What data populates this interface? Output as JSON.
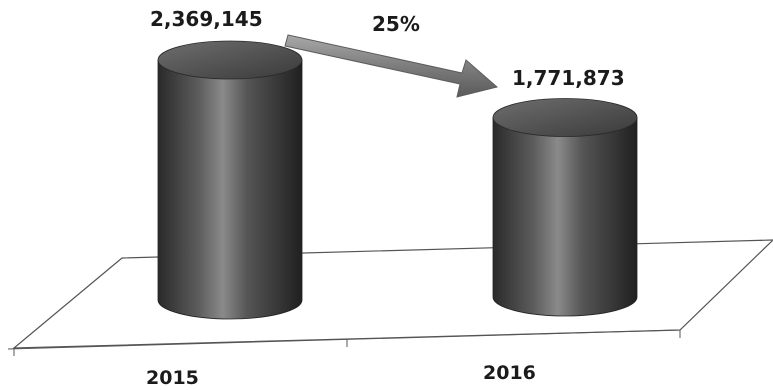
{
  "chart_data": {
    "type": "bar",
    "style": "3d-cylinder",
    "categories": [
      "2015",
      "2016"
    ],
    "values": [
      2369145,
      1771873
    ],
    "value_labels": [
      "2,369,145",
      "1,771,873"
    ],
    "change_annotation": "25%",
    "title": "",
    "xlabel": "",
    "ylabel": "",
    "grid": false,
    "legend": "none",
    "colors": {
      "bar": "#4d4d4d",
      "bar_highlight": "#8a8a8a",
      "bar_shadow": "#262626",
      "arrow": "#7a7a7a",
      "floor_line": "#555555"
    }
  }
}
